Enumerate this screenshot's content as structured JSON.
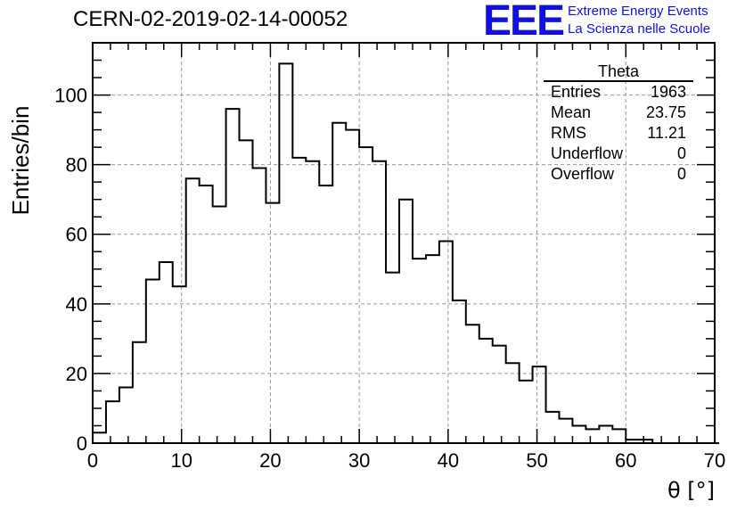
{
  "header": {
    "run_title": "CERN-02-2019-02-14-00052",
    "logo_text": "EEE",
    "logo_line1": "Extreme Energy Events",
    "logo_line2": "La Scienza nelle Scuole",
    "logo_color": "#1010e0"
  },
  "stats": {
    "title": "Theta",
    "rows": [
      {
        "label": "Entries",
        "value": "1963"
      },
      {
        "label": "Mean",
        "value": "23.75"
      },
      {
        "label": "RMS",
        "value": "11.21"
      },
      {
        "label": "Underflow",
        "value": "0"
      },
      {
        "label": "Overflow",
        "value": "0"
      }
    ]
  },
  "chart_data": {
    "type": "bar",
    "title": "CERN-02-2019-02-14-00052",
    "xlabel": "θ [°]",
    "ylabel": "Entries/bin",
    "xlim": [
      0,
      70
    ],
    "ylim": [
      0,
      115
    ],
    "bin_width": 1.5,
    "grid": true,
    "xticks": [
      0,
      10,
      20,
      30,
      40,
      50,
      60,
      70
    ],
    "yticks": [
      0,
      20,
      40,
      60,
      80,
      100
    ],
    "series": [
      {
        "name": "Theta",
        "values": [
          3,
          12,
          16,
          29,
          47,
          52,
          45,
          76,
          74,
          68,
          96,
          87,
          79,
          69,
          109,
          82,
          81,
          74,
          92,
          90,
          85,
          81,
          49,
          70,
          53,
          54,
          58,
          41,
          34,
          30,
          28,
          23,
          18,
          22,
          9,
          7,
          5,
          4,
          5,
          4,
          1,
          1,
          0,
          0,
          0,
          0,
          0
        ]
      }
    ]
  }
}
